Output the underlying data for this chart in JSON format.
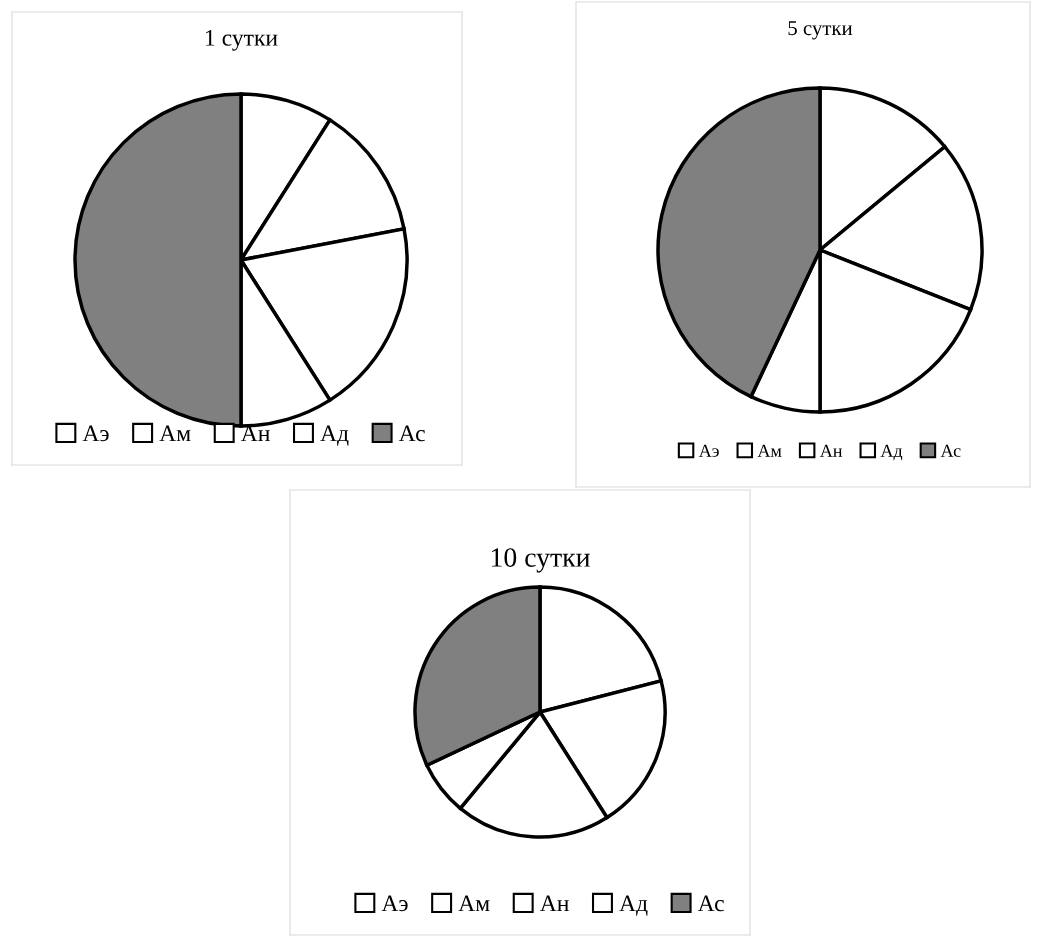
{
  "chart_data": [
    {
      "type": "pie",
      "title": "1 сутки",
      "categories": [
        "Аэ",
        "Ам",
        "Ан",
        "Ад",
        "Ас"
      ],
      "values": [
        9,
        13,
        19,
        9,
        50
      ],
      "colors": [
        "#ffffff",
        "#ffffff",
        "#ffffff",
        "#ffffff",
        "#808080"
      ],
      "legend": "bottom"
    },
    {
      "type": "pie",
      "title": "5 сутки",
      "categories": [
        "Аэ",
        "Ам",
        "Ан",
        "Ад",
        "Ас"
      ],
      "values": [
        14,
        17,
        19,
        7,
        43
      ],
      "colors": [
        "#ffffff",
        "#ffffff",
        "#ffffff",
        "#ffffff",
        "#808080"
      ],
      "legend": "bottom"
    },
    {
      "type": "pie",
      "title": "10 сутки",
      "categories": [
        "Аэ",
        "Ам",
        "Ан",
        "Ад",
        "Ас"
      ],
      "values": [
        21,
        20,
        20,
        7,
        32
      ],
      "colors": [
        "#ffffff",
        "#ffffff",
        "#ffffff",
        "#ffffff",
        "#808080"
      ],
      "legend": "bottom"
    }
  ]
}
